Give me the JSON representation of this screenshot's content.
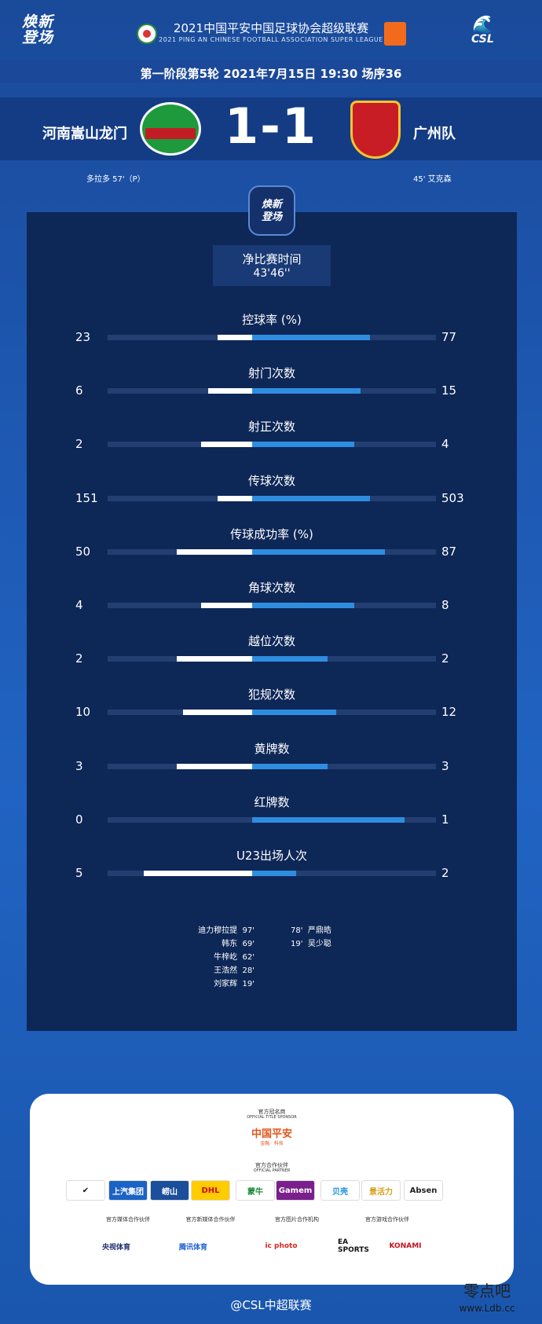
{
  "header": {
    "brand_line1": "焕新",
    "brand_line2": "登场",
    "league_title": "2021中国平安中国足球协会超级联赛",
    "league_subtitle": "2021 PING AN CHINESE FOOTBALL ASSOCIATION SUPER LEAGUE",
    "csl_logo": "CSL",
    "round_info": "第一阶段第5轮  2021年7月15日 19:30 场序36"
  },
  "match": {
    "home_team": "河南嵩山龙门",
    "away_team": "广州队",
    "score": "1-1",
    "home_scorer": "多拉多  57'（P）",
    "away_scorer": "45'  艾克森"
  },
  "panel": {
    "badge_line1": "焕新",
    "badge_line2": "登场",
    "time_label": "净比赛时间",
    "time_value": "43'46''"
  },
  "stats": [
    {
      "label": "控球率 (%)",
      "home": "23",
      "away": "77",
      "home_frac": 0.21,
      "away_frac": 0.72
    },
    {
      "label": "射门次数",
      "home": "6",
      "away": "15",
      "home_frac": 0.27,
      "away_frac": 0.66
    },
    {
      "label": "射正次数",
      "home": "2",
      "away": "4",
      "home_frac": 0.31,
      "away_frac": 0.62
    },
    {
      "label": "传球次数",
      "home": "151",
      "away": "503",
      "home_frac": 0.21,
      "away_frac": 0.72
    },
    {
      "label": "传球成功率 (%)",
      "home": "50",
      "away": "87",
      "home_frac": 0.46,
      "away_frac": 0.81
    },
    {
      "label": "角球次数",
      "home": "4",
      "away": "8",
      "home_frac": 0.31,
      "away_frac": 0.62
    },
    {
      "label": "越位次数",
      "home": "2",
      "away": "2",
      "home_frac": 0.46,
      "away_frac": 0.46
    },
    {
      "label": "犯规次数",
      "home": "10",
      "away": "12",
      "home_frac": 0.42,
      "away_frac": 0.51
    },
    {
      "label": "黄牌数",
      "home": "3",
      "away": "3",
      "home_frac": 0.46,
      "away_frac": 0.46
    },
    {
      "label": "红牌数",
      "home": "0",
      "away": "1",
      "home_frac": 0.0,
      "away_frac": 0.93
    },
    {
      "label": "U23出场人次",
      "home": "5",
      "away": "2",
      "home_frac": 0.66,
      "away_frac": 0.27
    }
  ],
  "u23_subs": {
    "home": [
      {
        "name": "迪力穆拉提",
        "minute": "97'"
      },
      {
        "name": "韩东",
        "minute": "69'"
      },
      {
        "name": "牛梓屹",
        "minute": "62'"
      },
      {
        "name": "王浩然",
        "minute": "28'"
      },
      {
        "name": "刘家辉",
        "minute": "19'"
      }
    ],
    "away": [
      {
        "name": "严鼎皓",
        "minute": "78'"
      },
      {
        "name": "吴少聪",
        "minute": "19'"
      }
    ]
  },
  "sponsors": {
    "title_sponsor_label": "官方冠名商",
    "title_sponsor_sub": "OFFICIAL TITLE SPONSOR",
    "title_sponsor_logo": "中国平安",
    "title_sponsor_tagline": "金融 · 科技",
    "partners_label": "官方合作伙伴",
    "partners_sub": "OFFICIAL PARTNER",
    "partners": [
      {
        "name": "✔",
        "bg": "#ffffff",
        "fg": "#111111"
      },
      {
        "name": "上汽集团",
        "bg": "#1b63c6",
        "fg": "#ffffff"
      },
      {
        "name": "崂山",
        "bg": "#1b4f9c",
        "fg": "#ffffff"
      },
      {
        "name": "DHL",
        "bg": "#ffcc00",
        "fg": "#d40511"
      },
      {
        "name": "蒙牛",
        "bg": "#ffffff",
        "fg": "#1f8a3b"
      },
      {
        "name": "Gamem",
        "bg": "#7a1f8c",
        "fg": "#ffffff"
      },
      {
        "name": "贝壳",
        "bg": "#ffffff",
        "fg": "#1a8fe3"
      },
      {
        "name": "景活力",
        "bg": "#ffffff",
        "fg": "#d4a11d"
      },
      {
        "name": "Absen",
        "bg": "#ffffff",
        "fg": "#222222"
      }
    ],
    "media_labels": [
      "官方媒体合作伙伴",
      "官方新媒体合作伙伴",
      "官方图片合作机构",
      "官方游戏合作伙伴"
    ],
    "media_logos": [
      "央视体育",
      "腾讯体育",
      "ic photo",
      "EA SPORTS",
      "KONAMI"
    ]
  },
  "footer": {
    "weibo_handle": "@CSL中超联赛",
    "watermark_line1": "零点吧",
    "watermark_line2": "www.Ldb.cc"
  }
}
